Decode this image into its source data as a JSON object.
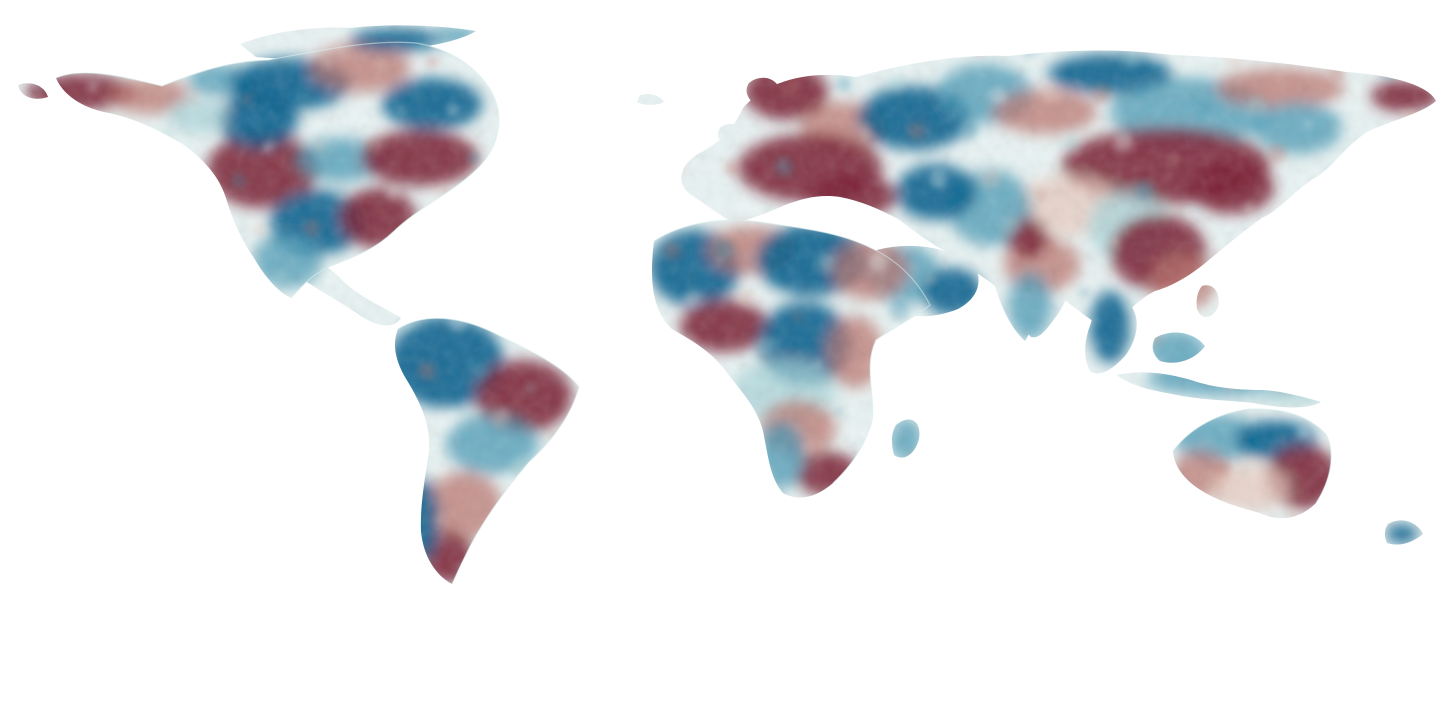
{
  "map": {
    "type": "global-equirectangular-anomaly-raster",
    "projection": "equirectangular",
    "background_color": "#ffffff",
    "land_base_color": "#eaf4f4",
    "palette": {
      "strong_negative": "#7a1e33",
      "moderate_negative": "#b86f68",
      "weak_negative": "#e7c9bd",
      "neutral": "#f6fbfb",
      "weak_positive": "#a8d4d8",
      "moderate_positive": "#3f93b2",
      "strong_positive": "#005b8a"
    },
    "legend": {
      "visible": false
    },
    "title": "",
    "labels_visible": false,
    "gridlines_visible": false
  }
}
